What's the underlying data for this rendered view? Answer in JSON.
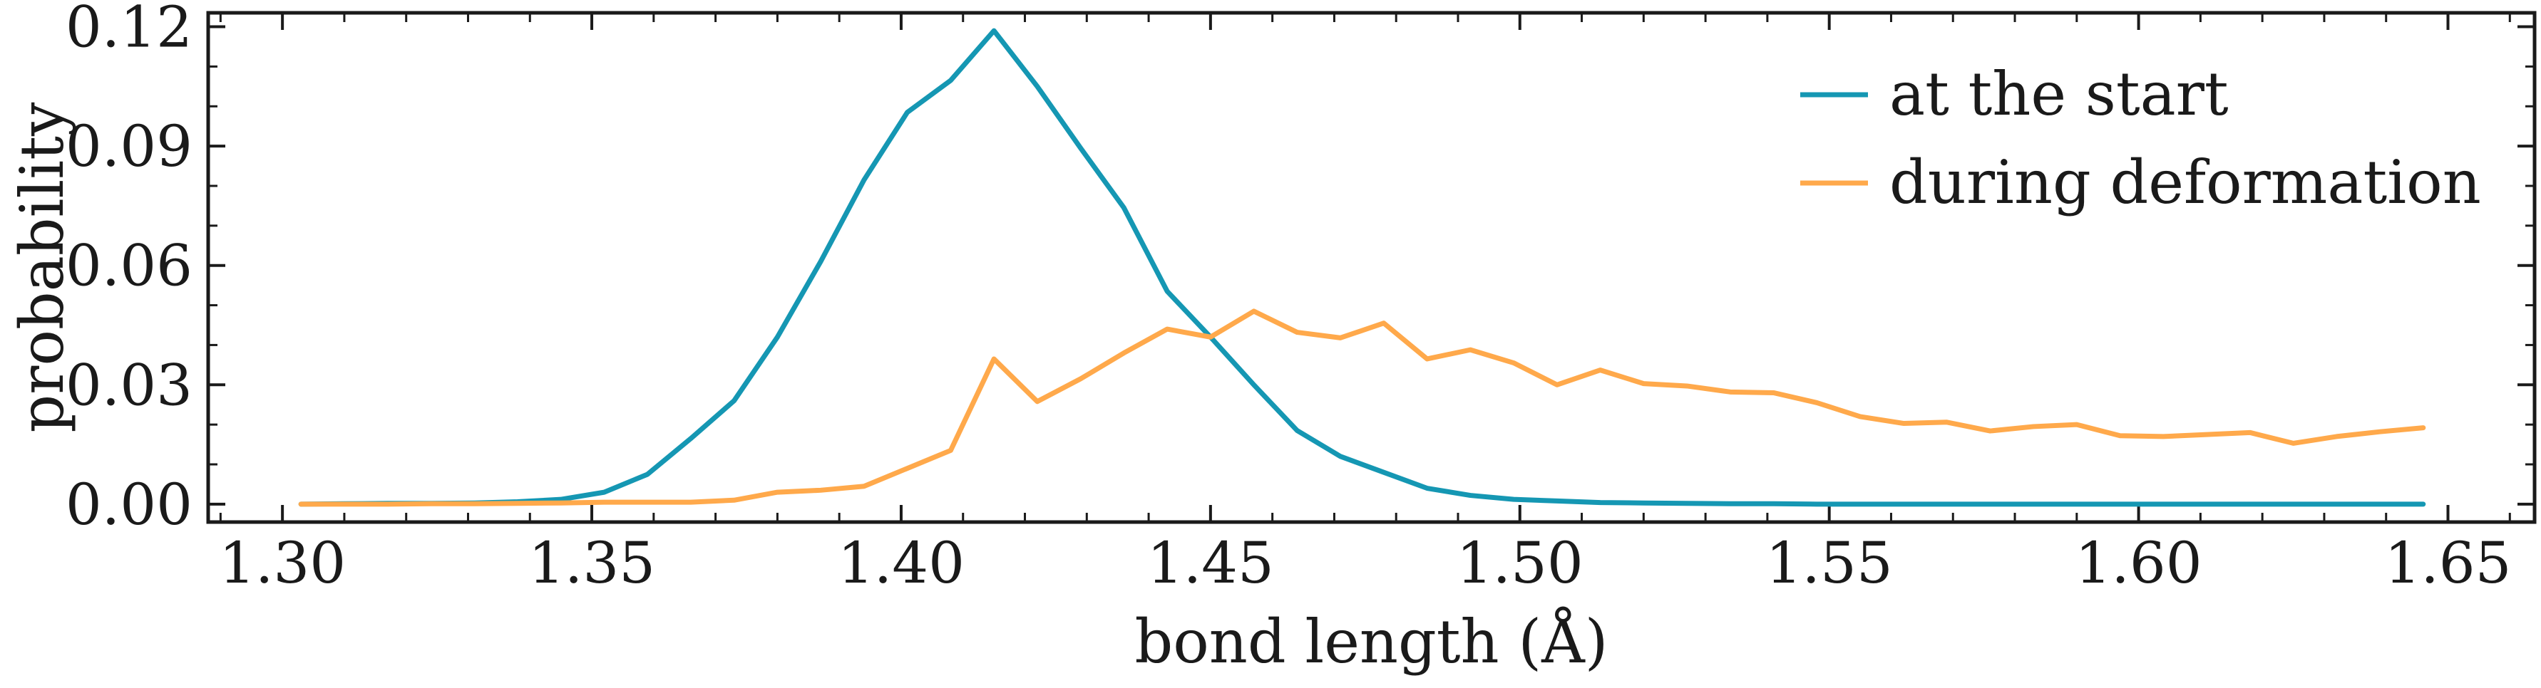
{
  "chart_data": {
    "type": "line",
    "title": "",
    "xlabel": "bond length (Å)",
    "ylabel": "probability",
    "xlim": [
      1.288,
      1.664
    ],
    "ylim": [
      -0.0045,
      0.1235
    ],
    "xticks": [
      "1.30",
      "1.35",
      "1.40",
      "1.45",
      "1.50",
      "1.55",
      "1.60",
      "1.65"
    ],
    "yticks": [
      "0.00",
      "0.03",
      "0.06",
      "0.09",
      "0.12"
    ],
    "grid": false,
    "legend_position": "top-right",
    "series": [
      {
        "name": "at the start",
        "color": "#1597b3",
        "points": [
          [
            1.303,
            0.0
          ],
          [
            1.31,
            0.0001
          ],
          [
            1.317,
            0.0002
          ],
          [
            1.324,
            0.0002
          ],
          [
            1.331,
            0.0003
          ],
          [
            1.338,
            0.0006
          ],
          [
            1.345,
            0.0012
          ],
          [
            1.352,
            0.003
          ],
          [
            1.359,
            0.0075
          ],
          [
            1.366,
            0.0165
          ],
          [
            1.373,
            0.026
          ],
          [
            1.38,
            0.042
          ],
          [
            1.387,
            0.061
          ],
          [
            1.394,
            0.0815
          ],
          [
            1.401,
            0.0985
          ],
          [
            1.408,
            0.1065
          ],
          [
            1.415,
            0.119
          ],
          [
            1.422,
            0.105
          ],
          [
            1.429,
            0.0895
          ],
          [
            1.436,
            0.0745
          ],
          [
            1.443,
            0.0535
          ],
          [
            1.45,
            0.042
          ],
          [
            1.457,
            0.03
          ],
          [
            1.464,
            0.0185
          ],
          [
            1.471,
            0.012
          ],
          [
            1.478,
            0.008
          ],
          [
            1.485,
            0.004
          ],
          [
            1.492,
            0.0022
          ],
          [
            1.499,
            0.0012
          ],
          [
            1.506,
            0.0008
          ],
          [
            1.513,
            0.0004
          ],
          [
            1.52,
            0.0003
          ],
          [
            1.527,
            0.0002
          ],
          [
            1.534,
            0.0001
          ],
          [
            1.541,
            0.0001
          ],
          [
            1.548,
            0.0
          ],
          [
            1.555,
            0.0
          ],
          [
            1.562,
            0.0
          ],
          [
            1.569,
            0.0
          ],
          [
            1.576,
            0.0
          ],
          [
            1.583,
            0.0
          ],
          [
            1.59,
            0.0
          ],
          [
            1.597,
            0.0
          ],
          [
            1.604,
            0.0
          ],
          [
            1.611,
            0.0
          ],
          [
            1.618,
            0.0
          ],
          [
            1.625,
            0.0
          ],
          [
            1.632,
            0.0
          ],
          [
            1.639,
            0.0
          ],
          [
            1.646,
            0.0
          ]
        ]
      },
      {
        "name": "during deformation",
        "color": "#ffa94b",
        "points": [
          [
            1.303,
            0.0
          ],
          [
            1.31,
            0.0
          ],
          [
            1.317,
            0.0
          ],
          [
            1.324,
            0.0001
          ],
          [
            1.331,
            0.0001
          ],
          [
            1.338,
            0.0002
          ],
          [
            1.345,
            0.0003
          ],
          [
            1.352,
            0.0005
          ],
          [
            1.359,
            0.0005
          ],
          [
            1.366,
            0.0005
          ],
          [
            1.373,
            0.001
          ],
          [
            1.38,
            0.003
          ],
          [
            1.387,
            0.0035
          ],
          [
            1.394,
            0.0045
          ],
          [
            1.401,
            0.009
          ],
          [
            1.408,
            0.0135
          ],
          [
            1.415,
            0.0365
          ],
          [
            1.422,
            0.0258
          ],
          [
            1.429,
            0.0315
          ],
          [
            1.436,
            0.038
          ],
          [
            1.443,
            0.044
          ],
          [
            1.45,
            0.042
          ],
          [
            1.457,
            0.0485
          ],
          [
            1.464,
            0.0432
          ],
          [
            1.471,
            0.0418
          ],
          [
            1.478,
            0.0455
          ],
          [
            1.485,
            0.0365
          ],
          [
            1.492,
            0.0388
          ],
          [
            1.499,
            0.0355
          ],
          [
            1.506,
            0.03
          ],
          [
            1.513,
            0.0337
          ],
          [
            1.52,
            0.0303
          ],
          [
            1.527,
            0.0297
          ],
          [
            1.534,
            0.0282
          ],
          [
            1.541,
            0.028
          ],
          [
            1.548,
            0.0255
          ],
          [
            1.555,
            0.022
          ],
          [
            1.562,
            0.0203
          ],
          [
            1.569,
            0.0206
          ],
          [
            1.576,
            0.0184
          ],
          [
            1.583,
            0.0195
          ],
          [
            1.59,
            0.02
          ],
          [
            1.597,
            0.0172
          ],
          [
            1.604,
            0.017
          ],
          [
            1.611,
            0.0175
          ],
          [
            1.618,
            0.018
          ],
          [
            1.625,
            0.0153
          ],
          [
            1.632,
            0.017
          ],
          [
            1.639,
            0.0182
          ],
          [
            1.646,
            0.0192
          ]
        ]
      }
    ]
  }
}
